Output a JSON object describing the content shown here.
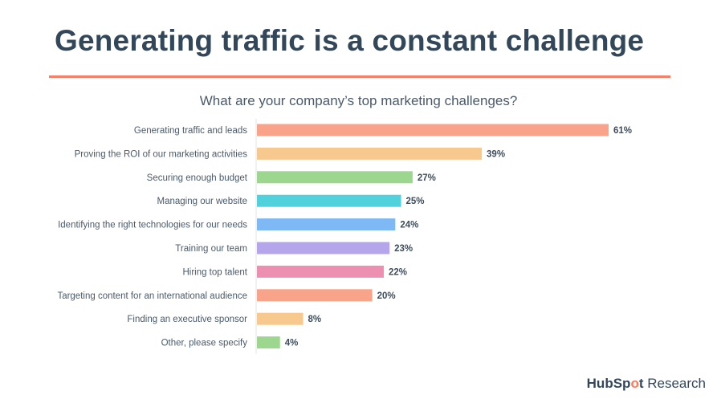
{
  "slide": {
    "title": "Generating traffic is a constant challenge",
    "brand_hub": "HubSp",
    "brand_o": "o",
    "brand_t": "t",
    "brand_research": "Research"
  },
  "chart_data": {
    "type": "bar",
    "orientation": "horizontal",
    "title": "What are your company’s top marketing challenges?",
    "categories": [
      "Generating traffic and leads",
      "Proving the ROI of our marketing activities",
      "Securing enough budget",
      "Managing our website",
      "Identifying the right technologies for our needs",
      "Training our team",
      "Hiring top talent",
      "Targeting content for an international audience",
      "Finding an executive sponsor",
      "Other, please specify"
    ],
    "values": [
      61,
      39,
      27,
      25,
      24,
      23,
      22,
      20,
      8,
      4
    ],
    "value_labels": [
      "61%",
      "39%",
      "27%",
      "25%",
      "24%",
      "23%",
      "22%",
      "20%",
      "8%",
      "4%"
    ],
    "colors": [
      "#f9a38a",
      "#f7c98f",
      "#9dd68f",
      "#51d1dc",
      "#7eb8f5",
      "#b5a6ec",
      "#ec8fb0",
      "#f9a38a",
      "#f7c98f",
      "#9dd68f"
    ],
    "xlim": [
      0,
      61
    ],
    "xlabel": "",
    "ylabel": "",
    "grid": false,
    "legend": "none"
  }
}
